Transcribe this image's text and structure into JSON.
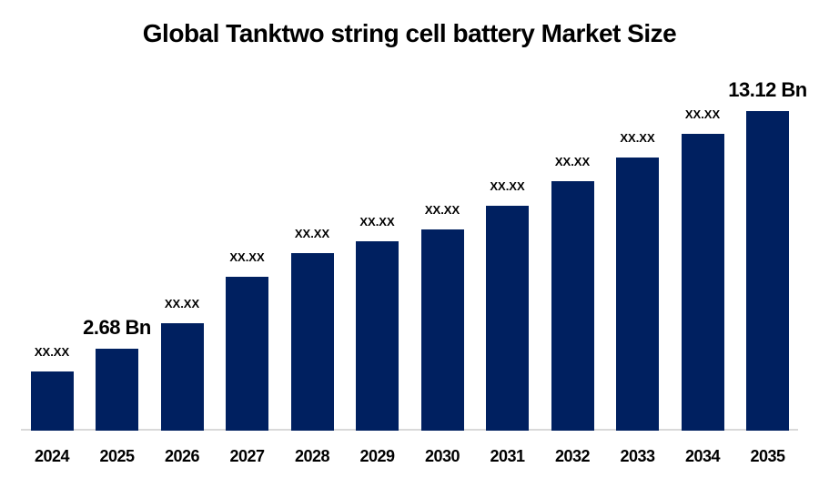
{
  "page": {
    "title": "Global Tanktwo string cell battery Market Size"
  },
  "chart_data": {
    "type": "bar",
    "title": "Global Tanktwo string cell battery Market Size",
    "xlabel": "",
    "ylabel": "",
    "legend": "none",
    "gridlines": false,
    "y_axis_visible": false,
    "unit": "USD Bn",
    "categories": [
      "2024",
      "2025",
      "2026",
      "2027",
      "2028",
      "2029",
      "2030",
      "2031",
      "2032",
      "2033",
      "2034",
      "2035"
    ],
    "series": [
      {
        "name": "Market Size (USD Bn)",
        "values": [
          1.68,
          2.68,
          3.8,
          5.84,
          6.88,
          7.4,
          7.92,
          8.96,
          10.04,
          11.08,
          12.12,
          13.12
        ]
      }
    ],
    "bar_labels": [
      "XX.XX",
      "2.68 Bn",
      "XX.XX",
      "XX.XX",
      "XX.XX",
      "XX.XX",
      "XX.XX",
      "XX.XX",
      "XX.XX",
      "XX.XX",
      "XX.XX",
      "13.12 Bn"
    ],
    "emphasized_labels": [
      "2.68 Bn",
      "13.12 Bn"
    ],
    "known_values": {
      "2025": "2.68 Bn",
      "2035": "13.12 Bn"
    },
    "colors": {
      "bar": "#002060",
      "axis_line": "#d9d9d9",
      "text": "#000000",
      "background": "#ffffff"
    }
  }
}
